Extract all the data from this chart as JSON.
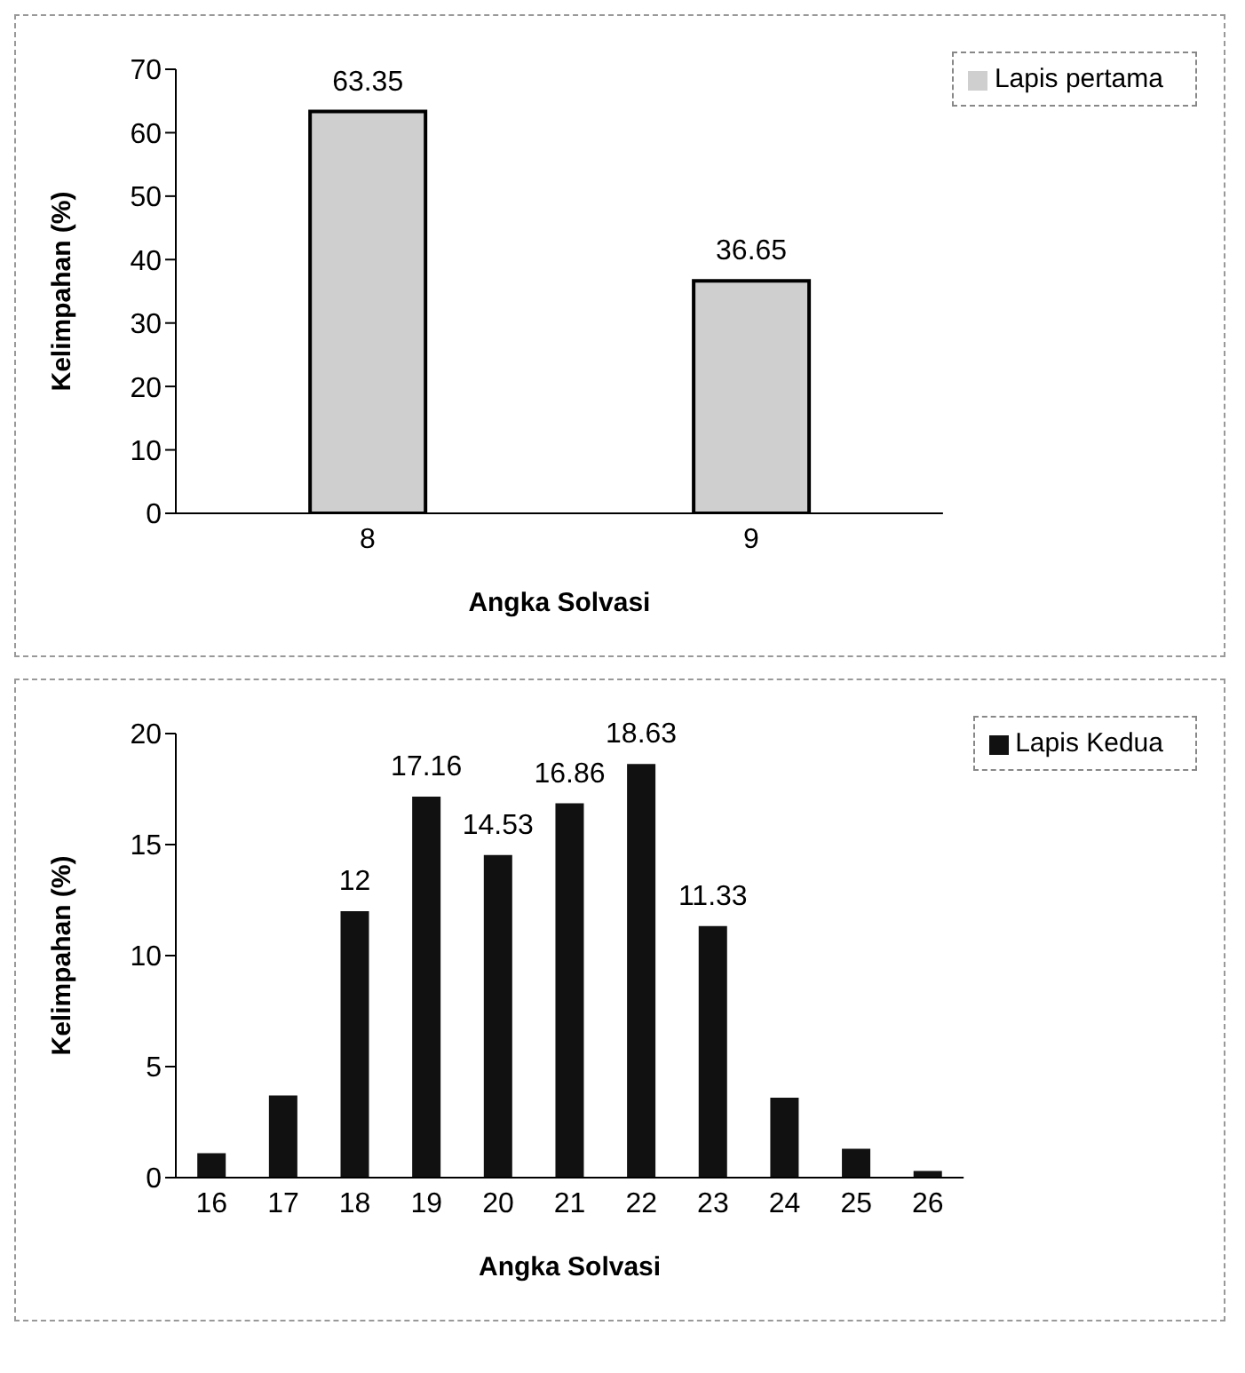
{
  "chart_data": [
    {
      "type": "bar",
      "xlabel": "Angka Solvasi",
      "ylabel": "Kelimpahan (%)",
      "categories": [
        "8",
        "9"
      ],
      "series": [
        {
          "name": "Lapis pertama",
          "color": "#cfcfcf",
          "values": [
            63.35,
            36.65
          ]
        }
      ],
      "ylim": [
        0,
        70
      ],
      "yticks": [
        0,
        10,
        20,
        30,
        40,
        50,
        60,
        70
      ],
      "data_labels": true,
      "legend": "top right",
      "grid": false
    },
    {
      "type": "bar",
      "xlabel": "Angka Solvasi",
      "ylabel": "Kelimpahan (%)",
      "categories": [
        "16",
        "17",
        "18",
        "19",
        "20",
        "21",
        "22",
        "23",
        "24",
        "25",
        "26"
      ],
      "series": [
        {
          "name": "Lapis Kedua",
          "color": "#111111",
          "values": [
            1.1,
            3.7,
            12,
            17.16,
            14.53,
            16.86,
            18.63,
            11.33,
            3.6,
            1.3,
            0.3
          ],
          "value_labels": [
            null,
            null,
            "12",
            "17.16",
            "14.53",
            "16.86",
            "18.63",
            "11.33",
            null,
            null,
            null
          ]
        }
      ],
      "ylim": [
        0,
        20
      ],
      "yticks": [
        0,
        5,
        10,
        15,
        20
      ],
      "legend": "top right",
      "grid": false
    }
  ]
}
